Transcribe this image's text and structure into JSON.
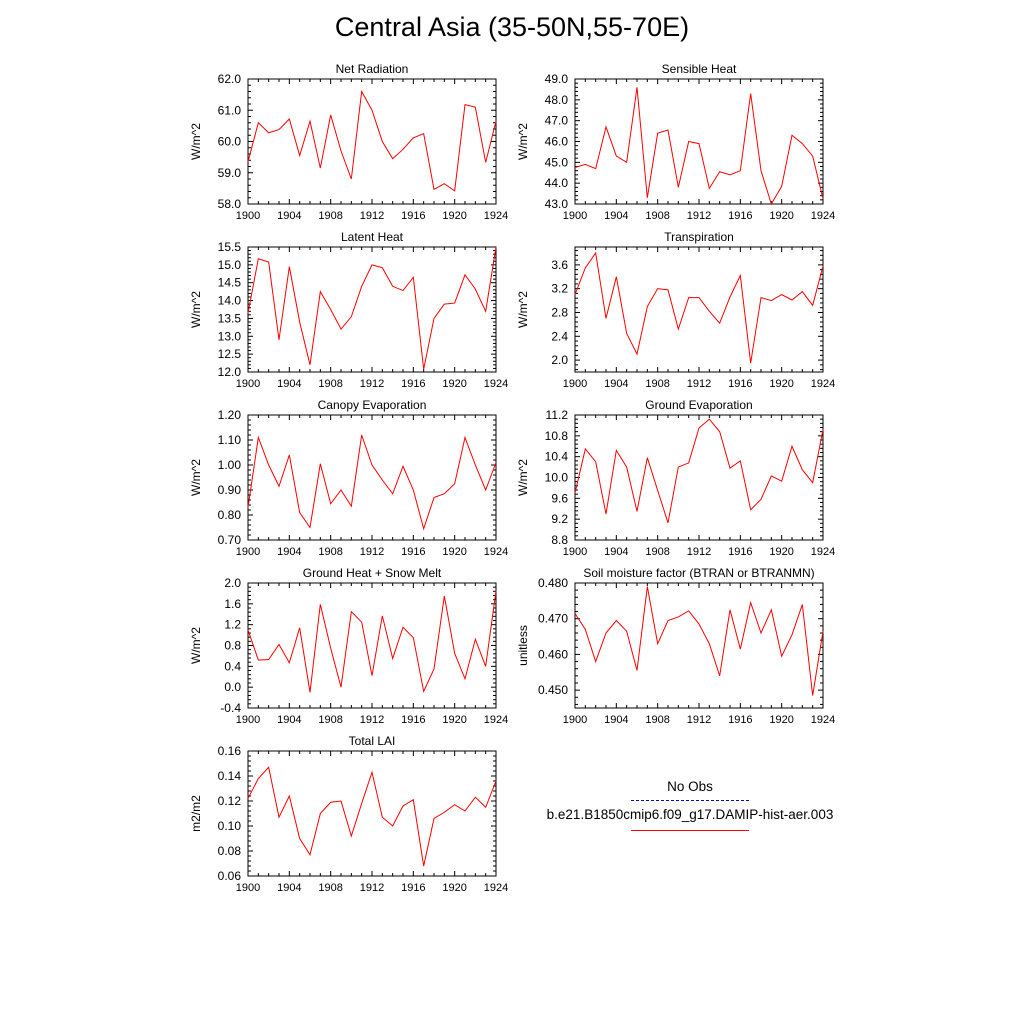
{
  "page": {
    "title": "Central Asia (35-50N,55-70E)"
  },
  "legend": {
    "entries": [
      {
        "label": "No Obs",
        "color": "#0000cc",
        "style": "dashed"
      },
      {
        "label": "b.e21.B1850cmip6.f09_g17.DAMIP-hist-aer.003",
        "color": "#ff0000",
        "style": "solid"
      }
    ]
  },
  "chart_data": [
    {
      "type": "line",
      "title": "Net Radiation",
      "ylabel": "W/m^2",
      "xlim": [
        1900,
        1924
      ],
      "ylim": [
        58.0,
        62.0
      ],
      "xticks": [
        1900,
        1904,
        1908,
        1912,
        1916,
        1920,
        1924
      ],
      "xtick_labels": [
        "1900",
        "1904",
        "1908",
        "1912",
        "1916",
        "1920",
        "1924"
      ],
      "yticks": [
        58.0,
        59.0,
        60.0,
        61.0,
        62.0
      ],
      "ytick_labels": [
        "58.0",
        "59.0",
        "60.0",
        "61.0",
        "62.0"
      ],
      "x": [
        1900,
        1901,
        1902,
        1903,
        1904,
        1905,
        1906,
        1907,
        1908,
        1909,
        1910,
        1911,
        1912,
        1913,
        1914,
        1915,
        1916,
        1917,
        1918,
        1919,
        1920,
        1921,
        1922,
        1923,
        1924
      ],
      "series": [
        {
          "color": "#ff0000",
          "values": [
            59.35,
            60.6,
            60.28,
            60.38,
            60.72,
            59.55,
            60.65,
            59.15,
            60.85,
            59.7,
            58.8,
            61.6,
            61.0,
            60.0,
            59.45,
            59.75,
            60.12,
            60.25,
            58.47,
            58.65,
            58.42,
            61.18,
            61.1,
            59.33,
            60.65
          ]
        }
      ]
    },
    {
      "type": "line",
      "title": "Sensible Heat",
      "ylabel": "W/m^2",
      "xlim": [
        1900,
        1924
      ],
      "ylim": [
        43.0,
        49.0
      ],
      "xticks": [
        1900,
        1904,
        1908,
        1912,
        1916,
        1920,
        1924
      ],
      "xtick_labels": [
        "1900",
        "1904",
        "1908",
        "1912",
        "1916",
        "1920",
        "1924"
      ],
      "yticks": [
        43.0,
        44.0,
        45.0,
        46.0,
        47.0,
        48.0,
        49.0
      ],
      "ytick_labels": [
        "43.0",
        "44.0",
        "45.0",
        "46.0",
        "47.0",
        "48.0",
        "49.0"
      ],
      "x": [
        1900,
        1901,
        1902,
        1903,
        1904,
        1905,
        1906,
        1907,
        1908,
        1909,
        1910,
        1911,
        1912,
        1913,
        1914,
        1915,
        1916,
        1917,
        1918,
        1919,
        1920,
        1921,
        1922,
        1923,
        1924
      ],
      "series": [
        {
          "color": "#ff0000",
          "values": [
            44.75,
            44.9,
            44.7,
            46.7,
            45.3,
            45.0,
            48.6,
            43.3,
            46.4,
            46.55,
            43.8,
            46.0,
            45.9,
            43.75,
            44.55,
            44.4,
            44.6,
            48.3,
            44.6,
            43.0,
            43.85,
            46.3,
            45.9,
            45.3,
            43.25
          ]
        }
      ]
    },
    {
      "type": "line",
      "title": "Latent Heat",
      "ylabel": "W/m^2",
      "xlim": [
        1900,
        1924
      ],
      "ylim": [
        12.0,
        15.5
      ],
      "xticks": [
        1900,
        1904,
        1908,
        1912,
        1916,
        1920,
        1924
      ],
      "xtick_labels": [
        "1900",
        "1904",
        "1908",
        "1912",
        "1916",
        "1920",
        "1924"
      ],
      "yticks": [
        12.0,
        12.5,
        13.0,
        13.5,
        14.0,
        14.5,
        15.0,
        15.5
      ],
      "ytick_labels": [
        "12.0",
        "12.5",
        "13.0",
        "13.5",
        "14.0",
        "14.5",
        "15.0",
        "15.5"
      ],
      "x": [
        1900,
        1901,
        1902,
        1903,
        1904,
        1905,
        1906,
        1907,
        1908,
        1909,
        1910,
        1911,
        1912,
        1913,
        1914,
        1915,
        1916,
        1917,
        1918,
        1919,
        1920,
        1921,
        1922,
        1923,
        1924
      ],
      "series": [
        {
          "color": "#ff0000",
          "values": [
            13.65,
            15.17,
            15.08,
            12.9,
            14.95,
            13.4,
            12.2,
            14.25,
            13.75,
            13.2,
            13.55,
            14.4,
            15.0,
            14.92,
            14.4,
            14.28,
            14.65,
            12.08,
            13.5,
            13.9,
            13.93,
            14.72,
            14.32,
            13.7,
            15.5
          ]
        }
      ]
    },
    {
      "type": "line",
      "title": "Transpiration",
      "ylabel": "W/m^2",
      "xlim": [
        1900,
        1924
      ],
      "ylim": [
        1.8,
        3.9
      ],
      "xticks": [
        1900,
        1904,
        1908,
        1912,
        1916,
        1920,
        1924
      ],
      "xtick_labels": [
        "1900",
        "1904",
        "1908",
        "1912",
        "1916",
        "1920",
        "1924"
      ],
      "yticks": [
        2.0,
        2.4,
        2.8,
        3.2,
        3.6
      ],
      "ytick_labels": [
        "2.0",
        "2.4",
        "2.8",
        "3.2",
        "3.6"
      ],
      "x": [
        1900,
        1901,
        1902,
        1903,
        1904,
        1905,
        1906,
        1907,
        1908,
        1909,
        1910,
        1911,
        1912,
        1913,
        1914,
        1915,
        1916,
        1917,
        1918,
        1919,
        1920,
        1921,
        1922,
        1923,
        1924
      ],
      "series": [
        {
          "color": "#ff0000",
          "values": [
            3.1,
            3.55,
            3.8,
            2.7,
            3.4,
            2.45,
            2.1,
            2.9,
            3.2,
            3.18,
            2.52,
            3.05,
            3.05,
            2.82,
            2.62,
            3.06,
            3.42,
            1.95,
            3.05,
            3.0,
            3.1,
            3.01,
            3.15,
            2.92,
            3.58
          ]
        }
      ]
    },
    {
      "type": "line",
      "title": "Canopy Evaporation",
      "ylabel": "W/m^2",
      "xlim": [
        1900,
        1924
      ],
      "ylim": [
        0.7,
        1.2
      ],
      "xticks": [
        1900,
        1904,
        1908,
        1912,
        1916,
        1920,
        1924
      ],
      "xtick_labels": [
        "1900",
        "1904",
        "1908",
        "1912",
        "1916",
        "1920",
        "1924"
      ],
      "yticks": [
        0.7,
        0.8,
        0.9,
        1.0,
        1.1,
        1.2
      ],
      "ytick_labels": [
        "0.70",
        "0.80",
        "0.90",
        "1.00",
        "1.10",
        "1.20"
      ],
      "x": [
        1900,
        1901,
        1902,
        1903,
        1904,
        1905,
        1906,
        1907,
        1908,
        1909,
        1910,
        1911,
        1912,
        1913,
        1914,
        1915,
        1916,
        1917,
        1918,
        1919,
        1920,
        1921,
        1922,
        1923,
        1924
      ],
      "series": [
        {
          "color": "#ff0000",
          "values": [
            0.83,
            1.11,
            1.0,
            0.915,
            1.04,
            0.81,
            0.75,
            1.005,
            0.845,
            0.9,
            0.835,
            1.12,
            1.0,
            0.94,
            0.885,
            0.995,
            0.9,
            0.745,
            0.87,
            0.885,
            0.925,
            1.11,
            1.0,
            0.9,
            1.01
          ]
        }
      ]
    },
    {
      "type": "line",
      "title": "Ground Evaporation",
      "ylabel": "W/m^2",
      "xlim": [
        1900,
        1924
      ],
      "ylim": [
        8.8,
        11.2
      ],
      "xticks": [
        1900,
        1904,
        1908,
        1912,
        1916,
        1920,
        1924
      ],
      "xtick_labels": [
        "1900",
        "1904",
        "1908",
        "1912",
        "1916",
        "1920",
        "1924"
      ],
      "yticks": [
        8.8,
        9.2,
        9.6,
        10.0,
        10.4,
        10.8,
        11.2
      ],
      "ytick_labels": [
        "8.8",
        "9.2",
        "9.6",
        "10.0",
        "10.4",
        "10.8",
        "11.2"
      ],
      "x": [
        1900,
        1901,
        1902,
        1903,
        1904,
        1905,
        1906,
        1907,
        1908,
        1909,
        1910,
        1911,
        1912,
        1913,
        1914,
        1915,
        1916,
        1917,
        1918,
        1919,
        1920,
        1921,
        1922,
        1923,
        1924
      ],
      "series": [
        {
          "color": "#ff0000",
          "values": [
            9.7,
            10.55,
            10.3,
            9.3,
            10.52,
            10.2,
            9.35,
            10.38,
            9.75,
            9.13,
            10.2,
            10.28,
            10.95,
            11.12,
            10.88,
            10.18,
            10.32,
            9.38,
            9.58,
            10.03,
            9.93,
            10.6,
            10.15,
            9.9,
            10.92
          ]
        }
      ]
    },
    {
      "type": "line",
      "title": "Ground Heat + Snow Melt",
      "ylabel": "W/m^2",
      "xlim": [
        1900,
        1924
      ],
      "ylim": [
        -0.4,
        2.0
      ],
      "xticks": [
        1900,
        1904,
        1908,
        1912,
        1916,
        1920,
        1924
      ],
      "xtick_labels": [
        "1900",
        "1904",
        "1908",
        "1912",
        "1916",
        "1920",
        "1924"
      ],
      "yticks": [
        -0.4,
        0.0,
        0.4,
        0.8,
        1.2,
        1.6,
        2.0
      ],
      "ytick_labels": [
        "-0.4",
        "0.0",
        "0.4",
        "0.8",
        "1.2",
        "1.6",
        "2.0"
      ],
      "x": [
        1900,
        1901,
        1902,
        1903,
        1904,
        1905,
        1906,
        1907,
        1908,
        1909,
        1910,
        1911,
        1912,
        1913,
        1914,
        1915,
        1916,
        1917,
        1918,
        1919,
        1920,
        1921,
        1922,
        1923,
        1924
      ],
      "series": [
        {
          "color": "#ff0000",
          "values": [
            1.1,
            0.52,
            0.53,
            0.82,
            0.47,
            1.14,
            -0.1,
            1.59,
            0.75,
            0.0,
            1.45,
            1.25,
            0.22,
            1.37,
            0.55,
            1.15,
            0.95,
            -0.08,
            0.35,
            1.75,
            0.65,
            0.16,
            0.92,
            0.4,
            1.85
          ]
        }
      ]
    },
    {
      "type": "line",
      "title": "Soil moisture factor (BTRAN or BTRANMN)",
      "ylabel": "unitless",
      "xlim": [
        1900,
        1924
      ],
      "ylim": [
        0.445,
        0.48
      ],
      "xticks": [
        1900,
        1904,
        1908,
        1912,
        1916,
        1920,
        1924
      ],
      "xtick_labels": [
        "1900",
        "1904",
        "1908",
        "1912",
        "1916",
        "1920",
        "1924"
      ],
      "yticks": [
        0.45,
        0.46,
        0.47,
        0.48
      ],
      "ytick_labels": [
        "0.450",
        "0.460",
        "0.470",
        "0.480"
      ],
      "x": [
        1900,
        1901,
        1902,
        1903,
        1904,
        1905,
        1906,
        1907,
        1908,
        1909,
        1910,
        1911,
        1912,
        1913,
        1914,
        1915,
        1916,
        1917,
        1918,
        1919,
        1920,
        1921,
        1922,
        1923,
        1924
      ],
      "series": [
        {
          "color": "#ff0000",
          "values": [
            0.4715,
            0.467,
            0.458,
            0.466,
            0.4695,
            0.4665,
            0.4555,
            0.479,
            0.463,
            0.4695,
            0.4705,
            0.4722,
            0.4685,
            0.463,
            0.454,
            0.4725,
            0.4615,
            0.4745,
            0.466,
            0.4725,
            0.4595,
            0.4655,
            0.474,
            0.4485,
            0.4665
          ]
        }
      ]
    },
    {
      "type": "line",
      "title": "Total LAI",
      "ylabel": "m2/m2",
      "xlim": [
        1900,
        1924
      ],
      "ylim": [
        0.06,
        0.16
      ],
      "xticks": [
        1900,
        1904,
        1908,
        1912,
        1916,
        1920,
        1924
      ],
      "xtick_labels": [
        "1900",
        "1904",
        "1908",
        "1912",
        "1916",
        "1920",
        "1924"
      ],
      "yticks": [
        0.06,
        0.08,
        0.1,
        0.12,
        0.14,
        0.16
      ],
      "ytick_labels": [
        "0.06",
        "0.08",
        "0.10",
        "0.12",
        "0.14",
        "0.16"
      ],
      "x": [
        1900,
        1901,
        1902,
        1903,
        1904,
        1905,
        1906,
        1907,
        1908,
        1909,
        1910,
        1911,
        1912,
        1913,
        1914,
        1915,
        1916,
        1917,
        1918,
        1919,
        1920,
        1921,
        1922,
        1923,
        1924
      ],
      "series": [
        {
          "color": "#ff0000",
          "values": [
            0.122,
            0.138,
            0.147,
            0.107,
            0.124,
            0.09,
            0.077,
            0.11,
            0.119,
            0.12,
            0.092,
            0.118,
            0.143,
            0.107,
            0.1,
            0.116,
            0.121,
            0.068,
            0.106,
            0.111,
            0.117,
            0.112,
            0.123,
            0.115,
            0.136
          ]
        }
      ]
    }
  ]
}
